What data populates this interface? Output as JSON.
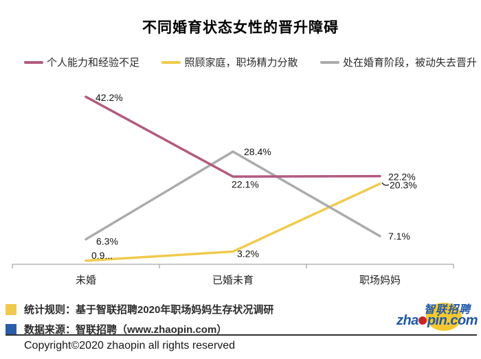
{
  "title": "不同婚育状态女性的晋升障碍",
  "chart_data": {
    "type": "line",
    "title": "不同婚育状态女性的晋升障碍",
    "categories": [
      "未婚",
      "已婚未育",
      "职场妈妈"
    ],
    "series": [
      {
        "name": "个人能力和经验不足",
        "color": "#b25a7e",
        "values": [
          42.2,
          22.1,
          22.2
        ],
        "point_labels": [
          "42.2%",
          "22.1%",
          "22.2%"
        ]
      },
      {
        "name": "照顾家庭，职场精力分散",
        "color": "#f0ca4d",
        "values": [
          0.9,
          3.2,
          20.3
        ],
        "point_labels": [
          "0.9...",
          "3.2%",
          "20.3%"
        ]
      },
      {
        "name": "处在婚育阶段，被动失去晋升",
        "color": "#ababab",
        "values": [
          6.3,
          28.4,
          7.1
        ],
        "point_labels": [
          "6.3%",
          "28.4%",
          "7.1%"
        ]
      }
    ],
    "xlabel": "",
    "ylabel": "",
    "ylim": [
      0,
      44
    ],
    "grid": false,
    "legend_position": "top",
    "axis_color": "#b3b3b3",
    "label_color": "#111111"
  },
  "footer": {
    "notes": [
      {
        "marker_color": "#f2c94c",
        "text": "统计规则：基于智联招聘2020年职场妈妈生存状况调研"
      },
      {
        "marker_color": "#2a5caa",
        "text": "数据来源：智联招聘（www.zhaopin.com）"
      }
    ],
    "logo": {
      "cn": "智联招聘",
      "domain_prefix": "zha",
      "domain_suffix": "pin.com",
      "brand_blue": "#1f58a8",
      "brand_yellow": "#f5c832",
      "brand_red": "#c3272b"
    },
    "copyright": "Copyright©2020  zhaopin all rights reserved"
  }
}
